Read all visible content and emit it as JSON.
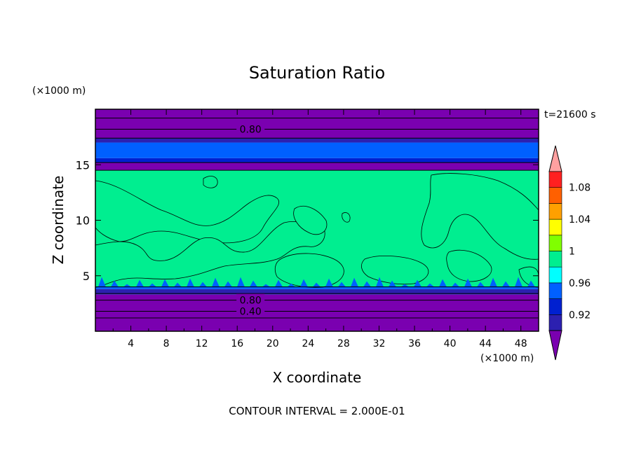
{
  "chart_data": {
    "type": "heatmap",
    "title": "Saturation Ratio",
    "xlabel": "X coordinate",
    "ylabel": "Z coordinate",
    "x_unit": "(×1000 m)",
    "y_unit": "(×1000 m)",
    "time_label": "t=21600 s",
    "footer": "CONTOUR INTERVAL = 2.000E-01",
    "xlim": [
      0,
      50
    ],
    "ylim": [
      0,
      20
    ],
    "xticks": [
      4,
      8,
      12,
      16,
      20,
      24,
      28,
      32,
      36,
      40,
      44,
      48
    ],
    "yticks": [
      5,
      10,
      15
    ],
    "contour_labels": [
      {
        "value": "0.80",
        "x": 17.5,
        "z": 18.2
      },
      {
        "value": "0.80",
        "x": 17.5,
        "z": 2.8
      },
      {
        "value": "0.40",
        "x": 17.5,
        "z": 1.8
      }
    ],
    "layers": [
      {
        "z0": 0,
        "z1": 3.3,
        "band": 0
      },
      {
        "z0": 3.3,
        "z1": 3.8,
        "band": 1
      },
      {
        "z0": 3.8,
        "z1": 4.0,
        "band": 3
      },
      {
        "z0": 4.0,
        "z1": 14.5,
        "band": 5,
        "note": "mixed 0.98-1.00 and 1.00-1.02"
      },
      {
        "z0": 14.5,
        "z1": 15.2,
        "band": 0
      },
      {
        "z0": 15.2,
        "z1": 15.6,
        "band": 2
      },
      {
        "z0": 15.6,
        "z1": 17.0,
        "band": 3
      },
      {
        "z0": 17.0,
        "z1": 17.4,
        "band": 1
      },
      {
        "z0": 17.4,
        "z1": 20,
        "band": 0
      }
    ],
    "colorbar": {
      "colors": [
        "#7a00b0",
        "#2c20b0",
        "#0020d0",
        "#0060ff",
        "#00ffff",
        "#00ee90",
        "#80ff00",
        "#ffff00",
        "#ffa000",
        "#ff6000",
        "#ff2020",
        "#ffa0a0"
      ],
      "tick_labels": [
        "0.92",
        "0.96",
        "1",
        "1.04",
        "1.08"
      ]
    }
  }
}
